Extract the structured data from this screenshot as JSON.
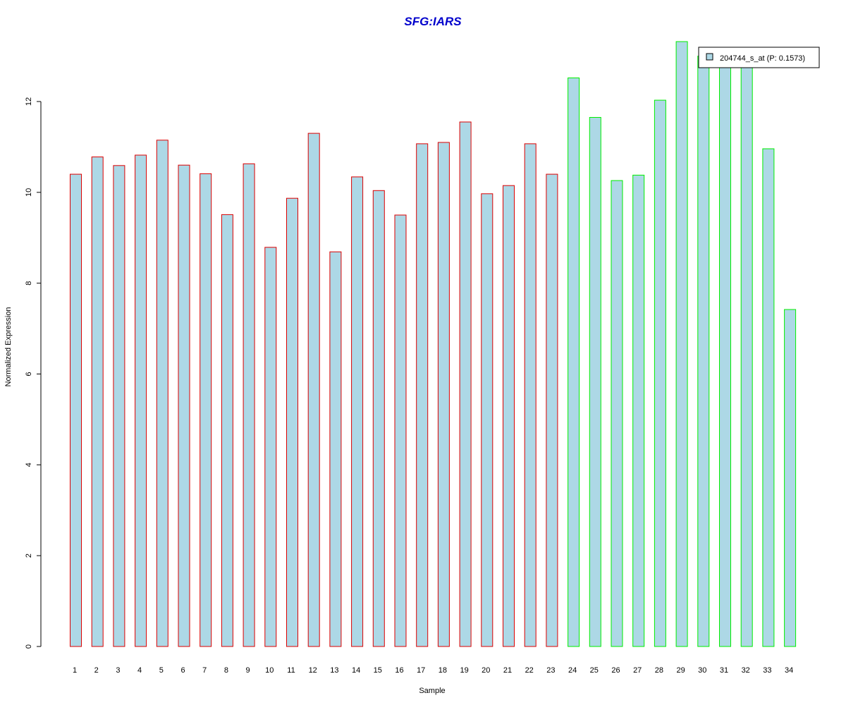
{
  "chart_data": {
    "type": "bar",
    "title": "SFG:IARS",
    "xlabel": "Sample",
    "ylabel": "Normalized Expression",
    "ylim": [
      0,
      13.5
    ],
    "yticks": [
      "0",
      "2",
      "4",
      "6",
      "8",
      "10",
      "12"
    ],
    "categories": [
      "1",
      "2",
      "3",
      "4",
      "5",
      "6",
      "7",
      "8",
      "9",
      "10",
      "11",
      "12",
      "13",
      "14",
      "15",
      "16",
      "17",
      "18",
      "19",
      "20",
      "21",
      "22",
      "23",
      "24",
      "25",
      "26",
      "27",
      "28",
      "29",
      "30",
      "31",
      "32",
      "33",
      "34"
    ],
    "values": [
      10.4,
      10.78,
      10.59,
      10.82,
      11.15,
      10.6,
      10.41,
      9.51,
      10.63,
      8.79,
      9.87,
      11.3,
      8.69,
      10.34,
      10.04,
      9.5,
      11.07,
      11.1,
      11.55,
      9.97,
      10.15,
      11.07,
      10.4,
      12.52,
      11.65,
      10.26,
      10.38,
      12.03,
      13.32,
      13.0,
      13.0,
      13.0,
      10.96,
      7.42
    ],
    "groups": [
      "red",
      "red",
      "red",
      "red",
      "red",
      "red",
      "red",
      "red",
      "red",
      "red",
      "red",
      "red",
      "red",
      "red",
      "red",
      "red",
      "red",
      "red",
      "red",
      "red",
      "red",
      "red",
      "red",
      "green",
      "green",
      "green",
      "green",
      "green",
      "green",
      "green",
      "green",
      "green",
      "green",
      "green"
    ],
    "legend": {
      "entries": [
        "204744_s_at (P: 0.1573)"
      ],
      "placement": "top-right"
    },
    "grid": false
  },
  "colors": {
    "title": "#0000cc",
    "bar_fill": "#add8e6",
    "border_red": "#dd0000",
    "border_green": "#00ee00",
    "axis": "#000000"
  }
}
